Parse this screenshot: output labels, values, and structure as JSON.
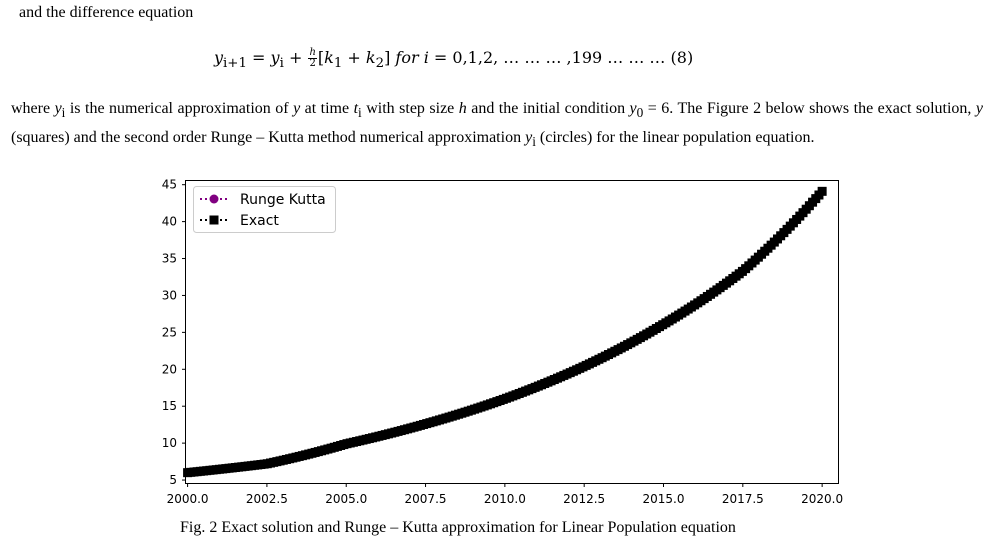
{
  "text": {
    "intro": "and the difference equation",
    "equation": {
      "lhs": "y",
      "lhs_sub": "i+1",
      "y_i": "y",
      "y_i_sub": "i",
      "h": "h",
      "two": "2",
      "k1": "k",
      "k1_sub": "1",
      "k2": "k",
      "k2_sub": "2",
      "for_i": "for i",
      "range": " = 0,1,2, … … … ,199 … … … (8)"
    },
    "para": {
      "p1": "where ",
      "y_sym": "y",
      "i_sub": "i",
      "p2": " is the numerical approximation of ",
      "y2": "y",
      "p3": " at time ",
      "t_sym": "t",
      "t_sub": "i",
      "p4": " with step size ",
      "h_sym": "h",
      "p5": " and the initial condition ",
      "y0": "y",
      "y0_sub": "0",
      "p6": " = 6. The Figure 2 below shows the exact solution, ",
      "y3": "y",
      "p7": " (squares) and the second order Runge – Kutta  method numerical approximation ",
      "yi2": "y",
      "yi2_sub": "i",
      "p8": " (circles) for the linear population equation."
    },
    "caption": "Fig. 2 Exact solution and Runge – Kutta approximation for Linear Population equation"
  },
  "colors": {
    "runge_kutta": "#800080",
    "exact": "#000000",
    "frame": "#000000"
  },
  "chart_data": {
    "type": "line",
    "title": "",
    "xlabel": "",
    "ylabel": "",
    "xlim": [
      1999.95,
      2020.5
    ],
    "ylim": [
      4.6,
      45.5
    ],
    "x_ticks": [
      2000.0,
      2002.5,
      2005.0,
      2007.5,
      2010.0,
      2012.5,
      2015.0,
      2017.5,
      2020.0
    ],
    "x_tick_labels": [
      "2000.0",
      "2002.5",
      "2005.0",
      "2007.5",
      "2010.0",
      "2012.5",
      "2015.0",
      "2017.5",
      "2020.0"
    ],
    "y_ticks": [
      5,
      10,
      15,
      20,
      25,
      30,
      35,
      40,
      45
    ],
    "y_tick_labels": [
      "5",
      "10",
      "15",
      "20",
      "25",
      "30",
      "35",
      "40",
      "45"
    ],
    "grid": false,
    "legend_position": "top-left",
    "x_start": 2000.0,
    "x_end": 2020.0,
    "num_points": 200,
    "series": [
      {
        "name": "Runge Kutta",
        "marker": "circle",
        "linestyle": "dotted",
        "points": [
          [
            2000.0,
            6.0
          ],
          [
            2002.5,
            7.2
          ],
          [
            2005.0,
            9.9
          ],
          [
            2007.5,
            12.6
          ],
          [
            2010.0,
            16.0
          ],
          [
            2012.5,
            20.4
          ],
          [
            2015.0,
            26.1
          ],
          [
            2017.5,
            33.3
          ],
          [
            2020.0,
            44.1
          ]
        ]
      },
      {
        "name": "Exact",
        "marker": "square",
        "linestyle": "dotted",
        "points": [
          [
            2000.0,
            6.0
          ],
          [
            2002.5,
            7.2
          ],
          [
            2005.0,
            9.9
          ],
          [
            2007.5,
            12.6
          ],
          [
            2010.0,
            16.0
          ],
          [
            2012.5,
            20.4
          ],
          [
            2015.0,
            26.1
          ],
          [
            2017.5,
            33.3
          ],
          [
            2020.0,
            44.1
          ]
        ]
      }
    ]
  }
}
